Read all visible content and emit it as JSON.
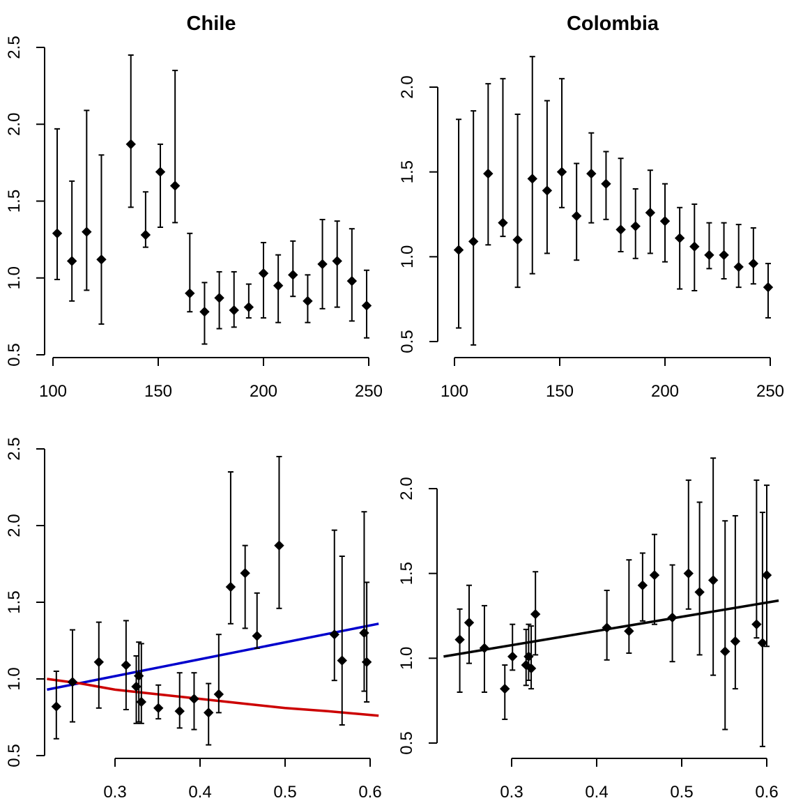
{
  "chart_data": [
    {
      "id": "p1",
      "type": "scatter",
      "title": "Chile",
      "xlabel": "",
      "ylabel": "",
      "xlim": [
        100,
        250
      ],
      "ylim": [
        0.5,
        2.5
      ],
      "xticks": [
        100,
        150,
        200,
        250
      ],
      "yticks": [
        "0.5",
        "1.0",
        "1.5",
        "2.0",
        "2.5"
      ],
      "points": [
        {
          "x": 102,
          "y": 1.29,
          "lo": 0.99,
          "hi": 1.97
        },
        {
          "x": 109,
          "y": 1.11,
          "lo": 0.85,
          "hi": 1.63
        },
        {
          "x": 116,
          "y": 1.3,
          "lo": 0.92,
          "hi": 2.09
        },
        {
          "x": 123,
          "y": 1.12,
          "lo": 0.7,
          "hi": 1.8
        },
        {
          "x": 137,
          "y": 1.87,
          "lo": 1.46,
          "hi": 2.45
        },
        {
          "x": 144,
          "y": 1.28,
          "lo": 1.2,
          "hi": 1.56
        },
        {
          "x": 151,
          "y": 1.69,
          "lo": 1.33,
          "hi": 1.87
        },
        {
          "x": 158,
          "y": 1.6,
          "lo": 1.36,
          "hi": 2.35
        },
        {
          "x": 165,
          "y": 0.9,
          "lo": 0.78,
          "hi": 1.29
        },
        {
          "x": 172,
          "y": 0.78,
          "lo": 0.57,
          "hi": 0.97
        },
        {
          "x": 179,
          "y": 0.87,
          "lo": 0.67,
          "hi": 1.04
        },
        {
          "x": 186,
          "y": 0.79,
          "lo": 0.68,
          "hi": 1.04
        },
        {
          "x": 193,
          "y": 0.81,
          "lo": 0.74,
          "hi": 0.96
        },
        {
          "x": 200,
          "y": 1.03,
          "lo": 0.74,
          "hi": 1.23
        },
        {
          "x": 207,
          "y": 0.95,
          "lo": 0.71,
          "hi": 1.15
        },
        {
          "x": 214,
          "y": 1.02,
          "lo": 0.88,
          "hi": 1.24
        },
        {
          "x": 221,
          "y": 0.85,
          "lo": 0.71,
          "hi": 1.02
        },
        {
          "x": 228,
          "y": 1.09,
          "lo": 0.8,
          "hi": 1.38
        },
        {
          "x": 235,
          "y": 1.11,
          "lo": 0.81,
          "hi": 1.37
        },
        {
          "x": 242,
          "y": 0.98,
          "lo": 0.72,
          "hi": 1.32
        },
        {
          "x": 249,
          "y": 0.82,
          "lo": 0.61,
          "hi": 1.05
        }
      ],
      "lines": []
    },
    {
      "id": "p2",
      "type": "scatter",
      "title": "Colombia",
      "xlabel": "",
      "ylabel": "",
      "xlim": [
        100,
        250
      ],
      "ylim": [
        0.5,
        2.0
      ],
      "xticks": [
        100,
        150,
        200,
        250
      ],
      "yticks": [
        "0.5",
        "1.0",
        "1.5",
        "2.0"
      ],
      "points": [
        {
          "x": 102,
          "y": 1.04,
          "lo": 0.58,
          "hi": 1.81
        },
        {
          "x": 109,
          "y": 1.09,
          "lo": 0.48,
          "hi": 1.86
        },
        {
          "x": 116,
          "y": 1.49,
          "lo": 1.07,
          "hi": 2.02
        },
        {
          "x": 123,
          "y": 1.2,
          "lo": 1.12,
          "hi": 2.05
        },
        {
          "x": 130,
          "y": 1.1,
          "lo": 0.82,
          "hi": 1.84
        },
        {
          "x": 137,
          "y": 1.46,
          "lo": 0.9,
          "hi": 2.18
        },
        {
          "x": 144,
          "y": 1.39,
          "lo": 1.02,
          "hi": 1.92
        },
        {
          "x": 151,
          "y": 1.5,
          "lo": 1.29,
          "hi": 2.05
        },
        {
          "x": 158,
          "y": 1.24,
          "lo": 0.98,
          "hi": 1.55
        },
        {
          "x": 165,
          "y": 1.49,
          "lo": 1.2,
          "hi": 1.73
        },
        {
          "x": 172,
          "y": 1.43,
          "lo": 1.22,
          "hi": 1.62
        },
        {
          "x": 179,
          "y": 1.16,
          "lo": 1.03,
          "hi": 1.58
        },
        {
          "x": 186,
          "y": 1.18,
          "lo": 0.99,
          "hi": 1.4
        },
        {
          "x": 193,
          "y": 1.26,
          "lo": 1.02,
          "hi": 1.51
        },
        {
          "x": 200,
          "y": 1.21,
          "lo": 0.97,
          "hi": 1.43
        },
        {
          "x": 207,
          "y": 1.11,
          "lo": 0.81,
          "hi": 1.29
        },
        {
          "x": 214,
          "y": 1.06,
          "lo": 0.8,
          "hi": 1.31
        },
        {
          "x": 221,
          "y": 1.01,
          "lo": 0.93,
          "hi": 1.2
        },
        {
          "x": 228,
          "y": 1.01,
          "lo": 0.87,
          "hi": 1.2
        },
        {
          "x": 235,
          "y": 0.94,
          "lo": 0.82,
          "hi": 1.19
        },
        {
          "x": 242,
          "y": 0.96,
          "lo": 0.84,
          "hi": 1.17
        },
        {
          "x": 249,
          "y": 0.82,
          "lo": 0.64,
          "hi": 0.96
        }
      ],
      "lines": []
    },
    {
      "id": "p3",
      "type": "scatter",
      "title": "",
      "xlabel": "",
      "ylabel": "",
      "xlim": [
        0.22,
        0.61
      ],
      "ylim": [
        0.5,
        2.5
      ],
      "xticks": [
        0.3,
        0.4,
        0.5,
        0.6
      ],
      "yticks": [
        "0.5",
        "1.0",
        "1.5",
        "2.0",
        "2.5"
      ],
      "points": [
        {
          "x": 0.231,
          "y": 0.82,
          "lo": 0.61,
          "hi": 1.05
        },
        {
          "x": 0.25,
          "y": 0.98,
          "lo": 0.72,
          "hi": 1.32
        },
        {
          "x": 0.281,
          "y": 1.11,
          "lo": 0.81,
          "hi": 1.37
        },
        {
          "x": 0.313,
          "y": 1.09,
          "lo": 0.8,
          "hi": 1.38
        },
        {
          "x": 0.325,
          "y": 0.95,
          "lo": 0.71,
          "hi": 1.15
        },
        {
          "x": 0.328,
          "y": 1.02,
          "lo": 0.72,
          "hi": 1.24
        },
        {
          "x": 0.331,
          "y": 0.85,
          "lo": 0.71,
          "hi": 1.23
        },
        {
          "x": 0.351,
          "y": 0.81,
          "lo": 0.74,
          "hi": 0.96
        },
        {
          "x": 0.376,
          "y": 0.79,
          "lo": 0.68,
          "hi": 1.04
        },
        {
          "x": 0.393,
          "y": 0.87,
          "lo": 0.67,
          "hi": 1.04
        },
        {
          "x": 0.41,
          "y": 0.78,
          "lo": 0.57,
          "hi": 0.97
        },
        {
          "x": 0.422,
          "y": 0.9,
          "lo": 0.78,
          "hi": 1.29
        },
        {
          "x": 0.436,
          "y": 1.6,
          "lo": 1.36,
          "hi": 2.35
        },
        {
          "x": 0.453,
          "y": 1.69,
          "lo": 1.33,
          "hi": 1.87
        },
        {
          "x": 0.467,
          "y": 1.28,
          "lo": 1.2,
          "hi": 1.56
        },
        {
          "x": 0.493,
          "y": 1.87,
          "lo": 1.46,
          "hi": 2.45
        },
        {
          "x": 0.558,
          "y": 1.29,
          "lo": 0.99,
          "hi": 1.97
        },
        {
          "x": 0.567,
          "y": 1.12,
          "lo": 0.7,
          "hi": 1.8
        },
        {
          "x": 0.593,
          "y": 1.3,
          "lo": 0.92,
          "hi": 2.09
        },
        {
          "x": 0.596,
          "y": 1.11,
          "lo": 0.85,
          "hi": 1.63
        }
      ],
      "lines": [
        {
          "color": "#0000cc",
          "x": [
            0.22,
            0.61
          ],
          "y": [
            0.93,
            1.36
          ]
        },
        {
          "color": "#cc0000",
          "x": [
            0.22,
            0.26,
            0.3,
            0.35,
            0.4,
            0.45,
            0.5,
            0.55,
            0.61
          ],
          "y": [
            1.0,
            0.97,
            0.93,
            0.9,
            0.87,
            0.84,
            0.81,
            0.79,
            0.76
          ]
        }
      ]
    },
    {
      "id": "p4",
      "type": "scatter",
      "title": "",
      "xlabel": "",
      "ylabel": "",
      "xlim": [
        0.22,
        0.61
      ],
      "ylim": [
        0.5,
        2.0
      ],
      "xticks": [
        0.3,
        0.4,
        0.5,
        0.6
      ],
      "yticks": [
        "0.5",
        "1.0",
        "1.5",
        "2.0"
      ],
      "points": [
        {
          "x": 0.239,
          "y": 1.11,
          "lo": 0.8,
          "hi": 1.29
        },
        {
          "x": 0.25,
          "y": 1.21,
          "lo": 0.97,
          "hi": 1.43
        },
        {
          "x": 0.268,
          "y": 1.06,
          "lo": 0.8,
          "hi": 1.31
        },
        {
          "x": 0.292,
          "y": 0.82,
          "lo": 0.64,
          "hi": 0.96
        },
        {
          "x": 0.301,
          "y": 1.01,
          "lo": 0.93,
          "hi": 1.2
        },
        {
          "x": 0.317,
          "y": 0.96,
          "lo": 0.84,
          "hi": 1.17
        },
        {
          "x": 0.32,
          "y": 1.01,
          "lo": 0.87,
          "hi": 1.2
        },
        {
          "x": 0.323,
          "y": 0.94,
          "lo": 0.82,
          "hi": 1.19
        },
        {
          "x": 0.328,
          "y": 1.26,
          "lo": 1.02,
          "hi": 1.51
        },
        {
          "x": 0.412,
          "y": 1.18,
          "lo": 0.99,
          "hi": 1.4
        },
        {
          "x": 0.438,
          "y": 1.16,
          "lo": 1.03,
          "hi": 1.58
        },
        {
          "x": 0.454,
          "y": 1.43,
          "lo": 1.22,
          "hi": 1.62
        },
        {
          "x": 0.468,
          "y": 1.49,
          "lo": 1.2,
          "hi": 1.73
        },
        {
          "x": 0.489,
          "y": 1.24,
          "lo": 0.98,
          "hi": 1.55
        },
        {
          "x": 0.508,
          "y": 1.5,
          "lo": 1.29,
          "hi": 2.05
        },
        {
          "x": 0.521,
          "y": 1.39,
          "lo": 1.02,
          "hi": 1.92
        },
        {
          "x": 0.537,
          "y": 1.46,
          "lo": 0.9,
          "hi": 2.18
        },
        {
          "x": 0.551,
          "y": 1.04,
          "lo": 0.58,
          "hi": 1.81
        },
        {
          "x": 0.563,
          "y": 1.1,
          "lo": 0.82,
          "hi": 1.84
        },
        {
          "x": 0.588,
          "y": 1.2,
          "lo": 1.12,
          "hi": 2.05
        },
        {
          "x": 0.595,
          "y": 1.09,
          "lo": 0.48,
          "hi": 1.86
        },
        {
          "x": 0.6,
          "y": 1.49,
          "lo": 1.07,
          "hi": 2.02
        }
      ],
      "lines": [
        {
          "color": "#000000",
          "x": [
            0.22,
            0.614
          ],
          "y": [
            1.01,
            1.34
          ]
        }
      ]
    }
  ]
}
